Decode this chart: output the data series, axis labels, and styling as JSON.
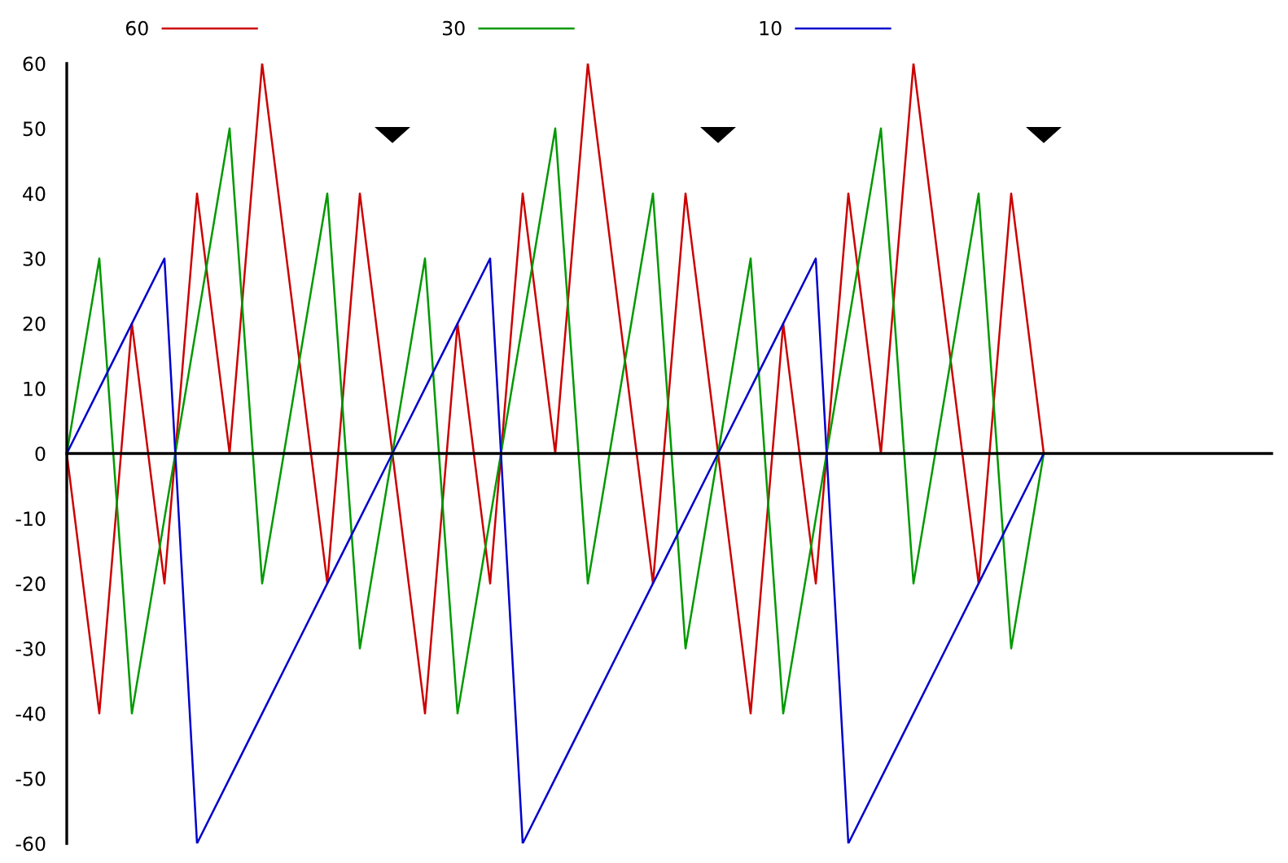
{
  "chart_data": {
    "type": "line",
    "categories": [
      null,
      null,
      null,
      null,
      null,
      null,
      null,
      null,
      null,
      null,
      null,
      null,
      null,
      null,
      null,
      null,
      null,
      null,
      null,
      null,
      null,
      null,
      null,
      null,
      null,
      null,
      null,
      null,
      null,
      null,
      null,
      null,
      null,
      null,
      null,
      null,
      null,
      null
    ],
    "series": [
      {
        "name": "60",
        "color": "#cc0000",
        "values": [
          0,
          -40,
          20,
          -20,
          40,
          0,
          60,
          20,
          -20,
          40,
          0,
          -40,
          20,
          -20,
          40,
          0,
          60,
          20,
          -20,
          40,
          0,
          -40,
          20,
          -20,
          40,
          0,
          60,
          20,
          -20,
          40,
          0,
          null,
          null,
          null,
          null,
          null,
          null,
          null
        ]
      },
      {
        "name": "30",
        "color": "#009900",
        "values": [
          0,
          30,
          -40,
          -10,
          20,
          50,
          -20,
          10,
          40,
          -30,
          0,
          30,
          -40,
          -10,
          20,
          50,
          -20,
          10,
          40,
          -30,
          0,
          30,
          -40,
          -10,
          20,
          50,
          -20,
          10,
          40,
          -30,
          0,
          null,
          null,
          null,
          null,
          null,
          null,
          null
        ]
      },
      {
        "name": "10",
        "color": "#0000cc",
        "values": [
          0,
          10,
          20,
          30,
          -60,
          -50,
          -40,
          -30,
          -20,
          -10,
          0,
          10,
          20,
          30,
          -60,
          -50,
          -40,
          -30,
          -20,
          -10,
          0,
          10,
          20,
          30,
          -60,
          -50,
          -40,
          -30,
          -20,
          -10,
          0,
          null,
          null,
          null,
          null,
          null,
          null,
          null
        ]
      },
      {
        "type": "scatter",
        "marker": "triangle",
        "color": "#000000",
        "values": [
          null,
          null,
          null,
          null,
          null,
          null,
          null,
          null,
          null,
          null,
          49,
          null,
          null,
          null,
          null,
          null,
          null,
          null,
          null,
          null,
          49,
          null,
          null,
          null,
          null,
          null,
          null,
          null,
          null,
          null,
          49,
          null,
          null,
          null,
          null,
          null,
          null,
          null
        ]
      }
    ],
    "ylim": [
      -60,
      60
    ],
    "yticks": [
      -60,
      -50,
      -40,
      -30,
      -20,
      -10,
      0,
      10,
      20,
      30,
      40,
      50,
      60
    ],
    "legend": "top",
    "tick_labels": "y",
    "marker": "none",
    "line_style": "solid"
  }
}
